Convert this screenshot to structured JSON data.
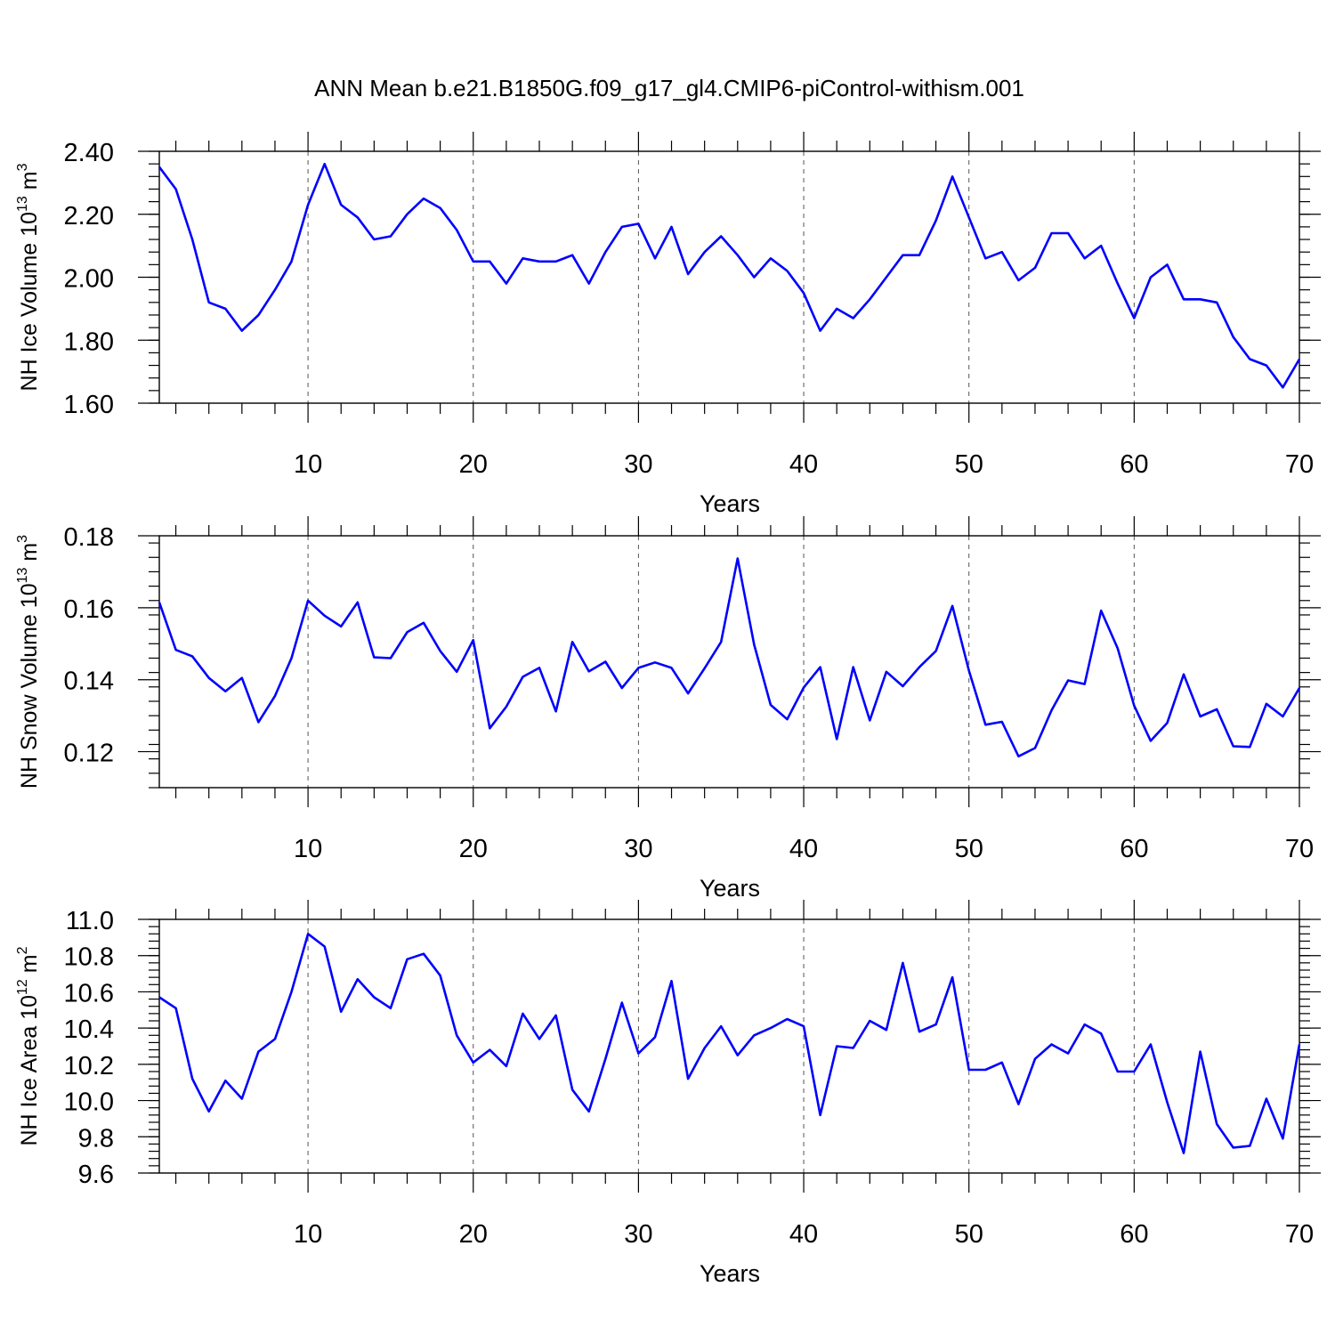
{
  "title": "ANN Mean b.e21.B1850G.f09_g17_gl4.CMIP6-piControl-withism.001",
  "line_color": "#0000ff",
  "chart_data": [
    {
      "type": "line",
      "ylabel_main": "NH Ice Volume 10",
      "ylabel_exp": "13",
      "ylabel_unit": "m",
      "ylabel_unit_exp": "3",
      "xlabel": "Years",
      "xlim": [
        1,
        70
      ],
      "ylim": [
        1.6,
        2.4
      ],
      "x_ticks": [
        10,
        20,
        30,
        40,
        50,
        60,
        70
      ],
      "x_tick_labels": [
        "10",
        "20",
        "30",
        "40",
        "50",
        "60",
        "70"
      ],
      "y_ticks": [
        1.6,
        1.8,
        2.0,
        2.2,
        2.4
      ],
      "y_tick_labels": [
        "1.60",
        "1.80",
        "2.00",
        "2.20",
        "2.40"
      ],
      "y_minor_step": 0.04,
      "grid": "vertical dashed at x ticks",
      "series": [
        {
          "values": [
            2.35,
            2.28,
            2.12,
            1.92,
            1.9,
            1.83,
            1.88,
            1.96,
            2.05,
            2.23,
            2.36,
            2.23,
            2.19,
            2.12,
            2.13,
            2.2,
            2.25,
            2.22,
            2.15,
            2.05,
            2.05,
            1.98,
            2.06,
            2.05,
            2.05,
            2.07,
            1.98,
            2.08,
            2.16,
            2.17,
            2.06,
            2.16,
            2.01,
            2.08,
            2.13,
            2.07,
            2.0,
            2.06,
            2.02,
            1.95,
            1.83,
            1.9,
            1.87,
            1.93,
            2.0,
            2.07,
            2.07,
            2.18,
            2.32,
            2.19,
            2.06,
            2.08,
            1.99,
            2.03,
            2.14,
            2.14,
            2.06,
            2.1,
            1.98,
            1.87,
            2.0,
            2.04,
            1.93,
            1.93,
            1.92,
            1.81,
            1.74,
            1.72,
            1.65,
            1.74
          ]
        }
      ]
    },
    {
      "type": "line",
      "ylabel_main": "NH Snow Volume 10",
      "ylabel_exp": "13",
      "ylabel_unit": "m",
      "ylabel_unit_exp": "3",
      "xlabel": "Years",
      "xlim": [
        1,
        70
      ],
      "ylim": [
        0.11,
        0.18
      ],
      "x_ticks": [
        10,
        20,
        30,
        40,
        50,
        60,
        70
      ],
      "x_tick_labels": [
        "10",
        "20",
        "30",
        "40",
        "50",
        "60",
        "70"
      ],
      "y_ticks": [
        0.12,
        0.14,
        0.16,
        0.18
      ],
      "y_tick_labels": [
        "0.12",
        "0.14",
        "0.16",
        "0.18"
      ],
      "y_minor_step": 0.004,
      "grid": "vertical dashed at x ticks",
      "series": [
        {
          "values": [
            0.1615,
            0.1483,
            0.1465,
            0.1405,
            0.1368,
            0.1405,
            0.1282,
            0.1355,
            0.146,
            0.162,
            0.1578,
            0.1548,
            0.1615,
            0.1462,
            0.146,
            0.1532,
            0.1558,
            0.148,
            0.1422,
            0.151,
            0.1265,
            0.1325,
            0.1408,
            0.1433,
            0.1312,
            0.1505,
            0.1423,
            0.145,
            0.1377,
            0.1433,
            0.1448,
            0.1433,
            0.1362,
            0.1432,
            0.1505,
            0.1737,
            0.1498,
            0.133,
            0.129,
            0.1378,
            0.1435,
            0.1235,
            0.1435,
            0.1287,
            0.1422,
            0.1382,
            0.1435,
            0.148,
            0.1605,
            0.1425,
            0.1275,
            0.1283,
            0.1187,
            0.121,
            0.1315,
            0.1398,
            0.1388,
            0.1592,
            0.1487,
            0.1328,
            0.123,
            0.128,
            0.1415,
            0.1298,
            0.1318,
            0.1215,
            0.1213,
            0.1333,
            0.1298,
            0.1377
          ]
        }
      ]
    },
    {
      "type": "line",
      "ylabel_main": "NH Ice Area 10",
      "ylabel_exp": "12",
      "ylabel_unit": "m",
      "ylabel_unit_exp": "2",
      "xlabel": "Years",
      "xlim": [
        1,
        70
      ],
      "ylim": [
        9.6,
        11.0
      ],
      "x_ticks": [
        10,
        20,
        30,
        40,
        50,
        60,
        70
      ],
      "x_tick_labels": [
        "10",
        "20",
        "30",
        "40",
        "50",
        "60",
        "70"
      ],
      "y_ticks": [
        9.6,
        9.8,
        10.0,
        10.2,
        10.4,
        10.6,
        10.8,
        11.0
      ],
      "y_tick_labels": [
        "9.6",
        "9.8",
        "10.0",
        "10.2",
        "10.4",
        "10.6",
        "10.8",
        "11.0"
      ],
      "y_minor_step": 0.04,
      "grid": "vertical dashed at x ticks",
      "series": [
        {
          "values": [
            10.57,
            10.51,
            10.12,
            9.94,
            10.11,
            10.01,
            10.27,
            10.34,
            10.6,
            10.92,
            10.85,
            10.49,
            10.67,
            10.57,
            10.51,
            10.78,
            10.81,
            10.69,
            10.36,
            10.21,
            10.28,
            10.19,
            10.48,
            10.34,
            10.47,
            10.06,
            9.94,
            10.23,
            10.54,
            10.26,
            10.35,
            10.66,
            10.12,
            10.29,
            10.41,
            10.25,
            10.36,
            10.4,
            10.45,
            10.41,
            9.92,
            10.3,
            10.29,
            10.44,
            10.39,
            10.76,
            10.38,
            10.42,
            10.68,
            10.17,
            10.17,
            10.21,
            9.98,
            10.23,
            10.31,
            10.26,
            10.42,
            10.37,
            10.16,
            10.16,
            10.31,
            9.99,
            9.71,
            10.27,
            9.87,
            9.74,
            9.75,
            10.01,
            9.79,
            10.31
          ]
        }
      ]
    }
  ]
}
